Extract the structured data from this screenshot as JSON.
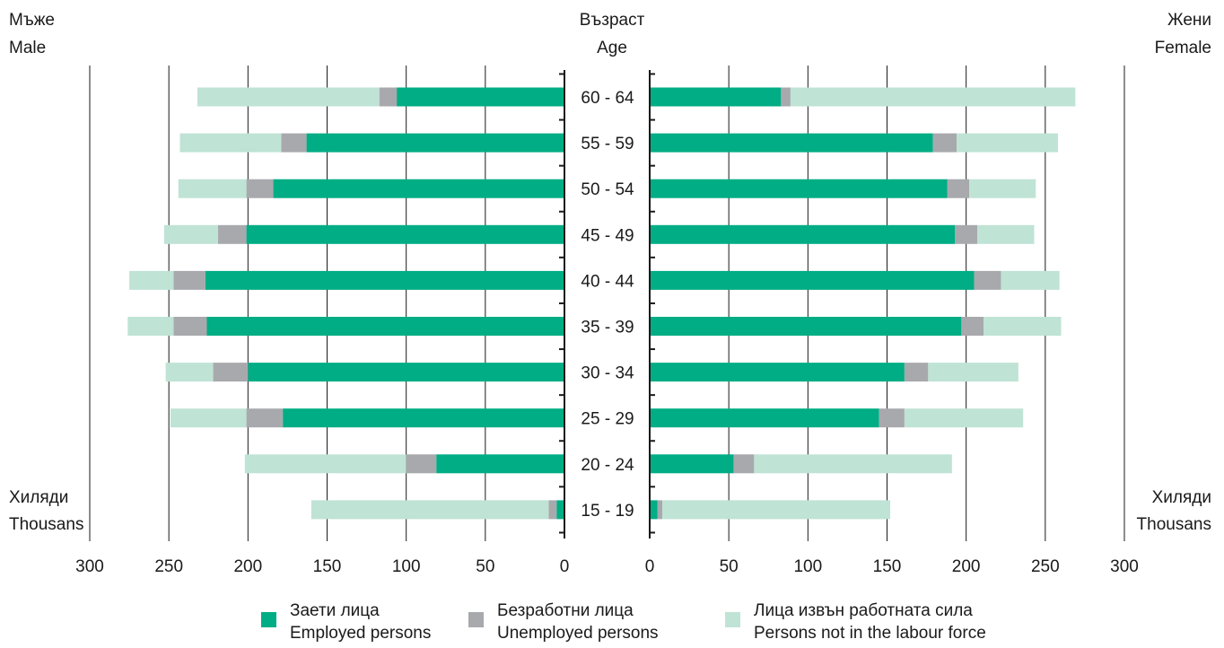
{
  "labels": {
    "male_bg": "Мъже",
    "male_en": "Male",
    "female_bg": "Жени",
    "female_en": "Female",
    "age_bg": "Възраст",
    "age_en": "Age",
    "units_bg": "Хиляди",
    "units_en": "Thousans"
  },
  "legend": [
    {
      "bg": "Заети лица",
      "en": "Employed persons",
      "color": "#00ad84"
    },
    {
      "bg": "Безработни лица",
      "en": "Unemployed persons",
      "color": "#a8a9ad"
    },
    {
      "bg": "Лица извън работната сила",
      "en": "Persons not in the labour force",
      "color": "#bfe3d5"
    }
  ],
  "chart_data": {
    "type": "bar",
    "orientation": "horizontal",
    "layout": "population-pyramid",
    "categories": [
      "60 - 64",
      "55 - 59",
      "50 - 54",
      "45 - 49",
      "40 - 44",
      "35 - 39",
      "30 - 34",
      "25 - 29",
      "20 - 24",
      "15 - 19"
    ],
    "male": {
      "employed": [
        106,
        163,
        184,
        201,
        227,
        226,
        200,
        178,
        81,
        5
      ],
      "unemployed": [
        11,
        16,
        17,
        18,
        20,
        21,
        22,
        23,
        19,
        5
      ],
      "inactive": [
        115,
        64,
        43,
        34,
        28,
        29,
        30,
        48,
        102,
        150
      ]
    },
    "female": {
      "employed": [
        83,
        179,
        188,
        193,
        205,
        197,
        161,
        145,
        53,
        5
      ],
      "unemployed": [
        6,
        15,
        14,
        14,
        17,
        14,
        15,
        16,
        13,
        3
      ],
      "inactive": [
        180,
        64,
        42,
        36,
        37,
        49,
        57,
        75,
        125,
        144
      ]
    },
    "xlim": [
      0,
      300
    ],
    "xticks": [
      0,
      50,
      100,
      150,
      200,
      250,
      300
    ],
    "grid": true
  }
}
